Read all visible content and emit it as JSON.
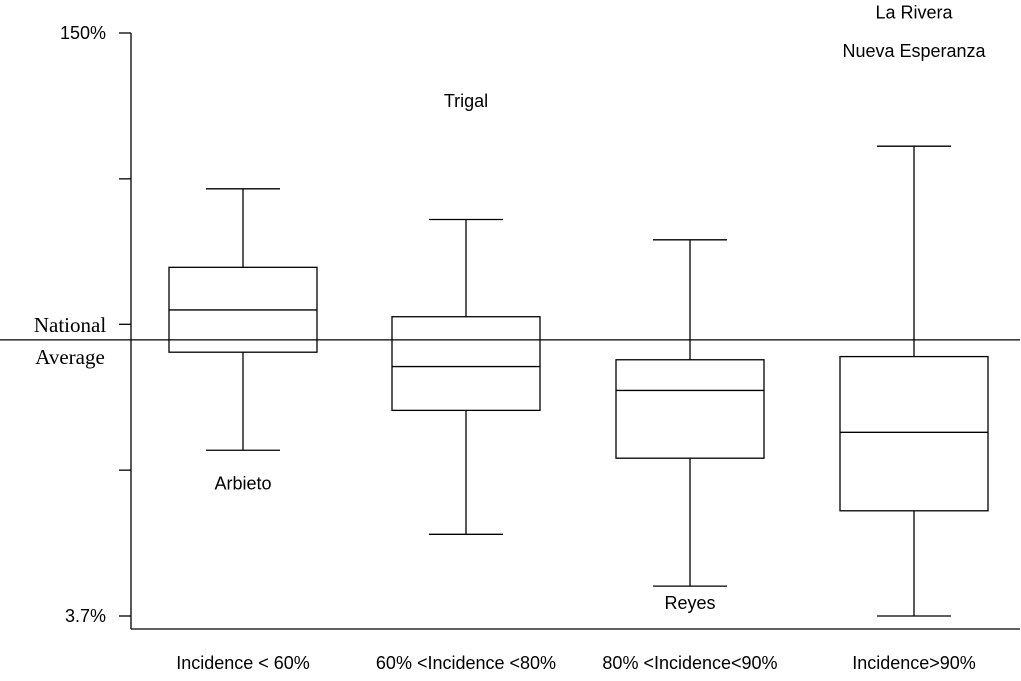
{
  "chart_data": {
    "type": "box",
    "ylim": [
      3.7,
      150
    ],
    "y_tick_labels": [
      {
        "value": 150,
        "label": "150%"
      },
      {
        "value": 3.7,
        "label": "3.7%"
      }
    ],
    "y_minor_ticks": [
      113.4,
      76.9,
      40.3
    ],
    "reference_line": {
      "value": 73.0,
      "label_lines": [
        "National",
        "Average"
      ]
    },
    "categories": [
      "Incidence < 60%",
      "60% <Incidence <80%",
      "80% <Incidence<90%",
      "Incidence>90%"
    ],
    "boxes": [
      {
        "category": "Incidence < 60%",
        "whisker_low": 45.3,
        "q1": 69.9,
        "median": 80.5,
        "q3": 91.2,
        "whisker_high": 110.9
      },
      {
        "category": "60% <Incidence <80%",
        "whisker_low": 24.2,
        "q1": 55.3,
        "median": 66.3,
        "q3": 78.8,
        "whisker_high": 103.2
      },
      {
        "category": "80% <Incidence<90%",
        "whisker_low": 11.2,
        "q1": 43.3,
        "median": 60.3,
        "q3": 68.0,
        "whisker_high": 98.1
      },
      {
        "category": "Incidence>90%",
        "whisker_low": 3.7,
        "q1": 30.1,
        "median": 49.8,
        "q3": 68.8,
        "whisker_high": 121.6
      }
    ],
    "annotations": [
      {
        "text": "Arbieto",
        "category": "Incidence < 60%",
        "y": 35.5
      },
      {
        "text": "Trigal",
        "category": "60% <Incidence <80%",
        "y": 131.4
      },
      {
        "text": "Reyes",
        "category": "80% <Incidence<90%",
        "y": 5.4
      },
      {
        "text": "La Rivera",
        "category": "Incidence>90%",
        "y": 153.6
      },
      {
        "text": "Nueva Esperanza",
        "category": "Incidence>90%",
        "y": 144.0
      }
    ]
  }
}
